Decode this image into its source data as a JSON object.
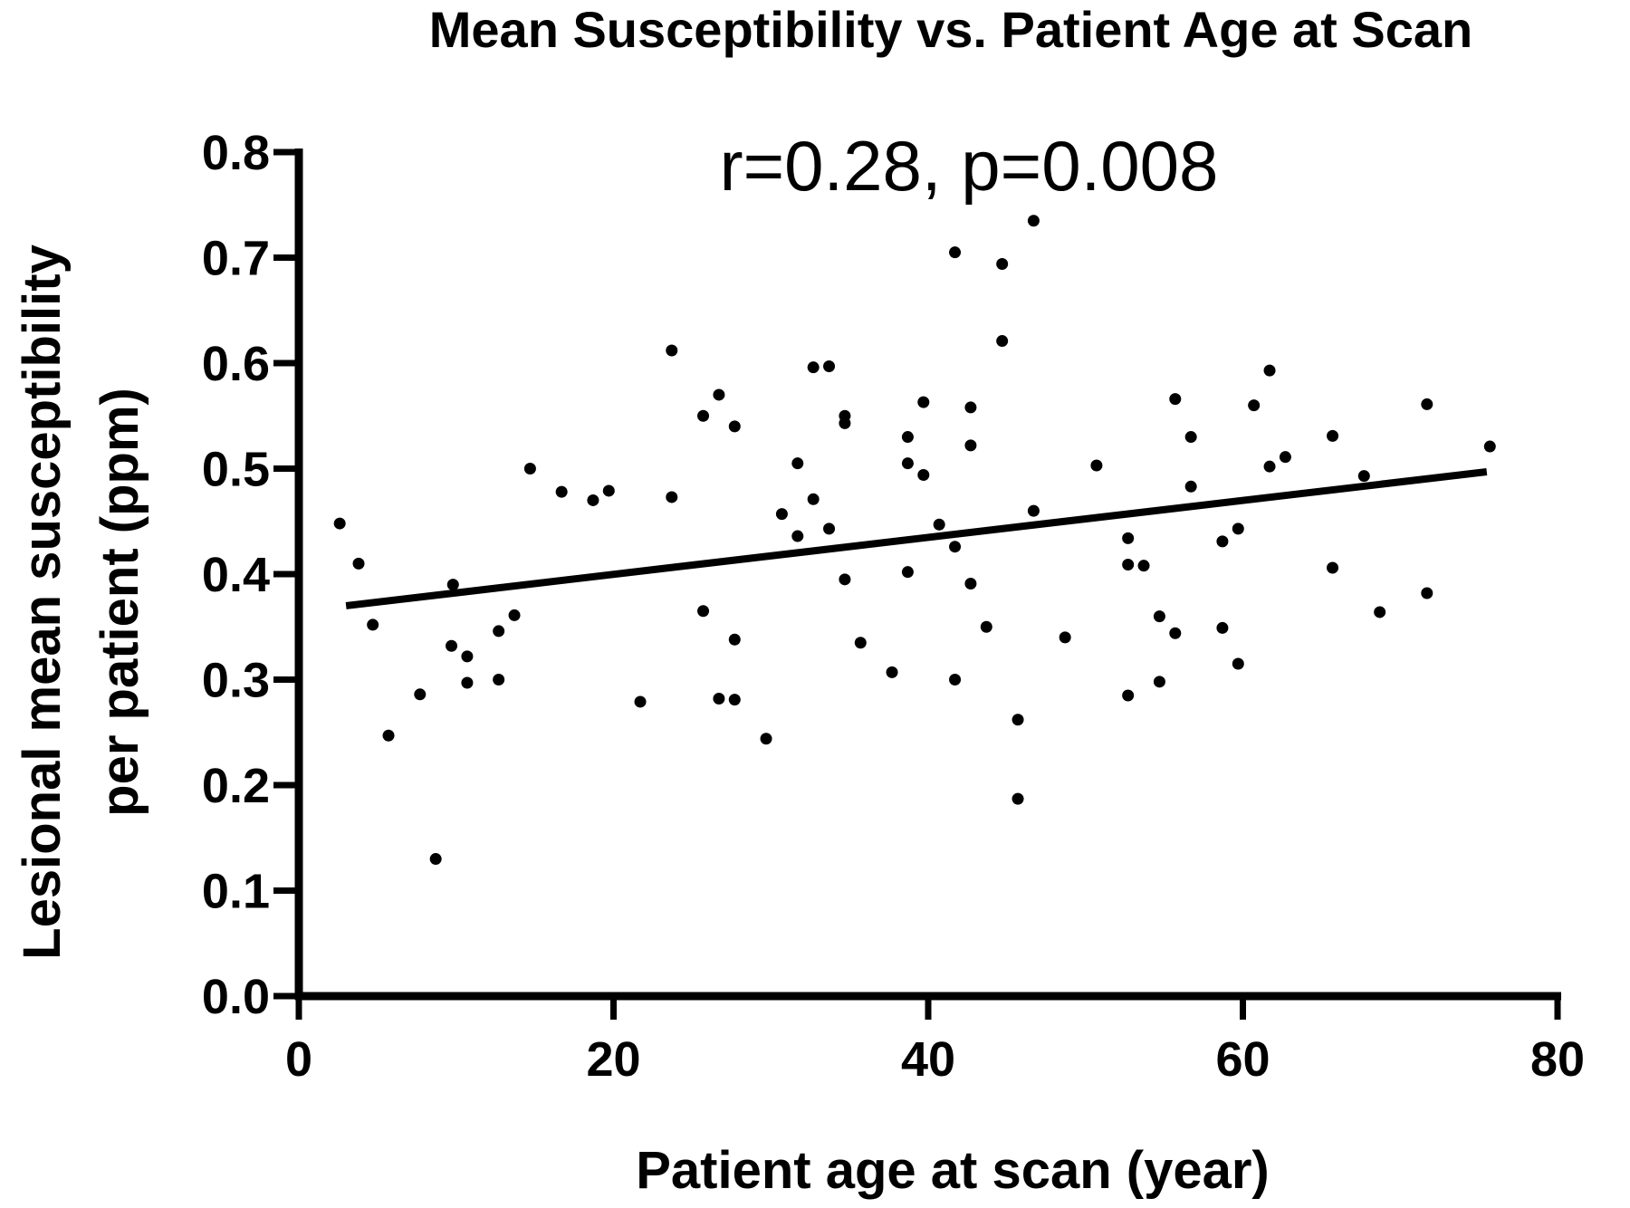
{
  "chart_data": {
    "type": "scatter",
    "title": "Mean Susceptibility vs. Patient Age at Scan",
    "annotation": "r=0.28, p=0.008",
    "xlabel": "Patient age at scan (year)",
    "ylabel_lines": [
      "Lesional mean susceptibility",
      "per patient (ppm)"
    ],
    "xlim": [
      0,
      80
    ],
    "ylim": [
      0,
      0.8
    ],
    "x_ticks": [
      0,
      20,
      40,
      60,
      80
    ],
    "x_tick_labels": [
      "0",
      "20",
      "40",
      "60",
      "80"
    ],
    "y_ticks": [
      0.0,
      0.1,
      0.2,
      0.3,
      0.4,
      0.5,
      0.6,
      0.7,
      0.8
    ],
    "y_tick_labels": [
      "0.0",
      "0.1",
      "0.2",
      "0.3",
      "0.4",
      "0.5",
      "0.6",
      "0.7",
      "0.8"
    ],
    "grid": false,
    "legend": "none",
    "marker_color": "#000000",
    "fit_line": {
      "x": [
        3,
        75.5
      ],
      "y": [
        0.37,
        0.497
      ]
    },
    "points": [
      [
        2.6,
        0.448
      ],
      [
        3.8,
        0.41
      ],
      [
        4.7,
        0.352
      ],
      [
        5.7,
        0.247
      ],
      [
        7.7,
        0.286
      ],
      [
        8.7,
        0.13
      ],
      [
        9.7,
        0.332
      ],
      [
        9.8,
        0.39
      ],
      [
        10.7,
        0.322
      ],
      [
        10.7,
        0.297
      ],
      [
        12.7,
        0.346
      ],
      [
        12.7,
        0.3
      ],
      [
        13.7,
        0.361
      ],
      [
        14.7,
        0.5
      ],
      [
        16.7,
        0.478
      ],
      [
        18.7,
        0.47
      ],
      [
        19.7,
        0.479
      ],
      [
        21.7,
        0.279
      ],
      [
        23.7,
        0.612
      ],
      [
        23.7,
        0.473
      ],
      [
        25.7,
        0.55
      ],
      [
        25.7,
        0.365
      ],
      [
        26.7,
        0.57
      ],
      [
        26.7,
        0.282
      ],
      [
        27.7,
        0.54
      ],
      [
        27.7,
        0.338
      ],
      [
        27.7,
        0.281
      ],
      [
        29.7,
        0.244
      ],
      [
        30.7,
        0.457
      ],
      [
        31.7,
        0.505
      ],
      [
        31.7,
        0.436
      ],
      [
        32.7,
        0.596
      ],
      [
        32.7,
        0.471
      ],
      [
        33.7,
        0.597
      ],
      [
        33.7,
        0.443
      ],
      [
        34.7,
        0.55
      ],
      [
        34.7,
        0.543
      ],
      [
        34.7,
        0.395
      ],
      [
        35.7,
        0.335
      ],
      [
        37.7,
        0.307
      ],
      [
        38.7,
        0.53
      ],
      [
        38.7,
        0.505
      ],
      [
        38.7,
        0.402
      ],
      [
        39.7,
        0.563
      ],
      [
        39.7,
        0.494
      ],
      [
        40.7,
        0.447
      ],
      [
        41.7,
        0.705
      ],
      [
        41.7,
        0.426
      ],
      [
        41.7,
        0.3
      ],
      [
        42.7,
        0.558
      ],
      [
        42.7,
        0.522
      ],
      [
        42.7,
        0.391
      ],
      [
        43.7,
        0.35
      ],
      [
        44.7,
        0.694
      ],
      [
        44.7,
        0.621
      ],
      [
        45.7,
        0.262
      ],
      [
        45.7,
        0.187
      ],
      [
        46.7,
        0.735
      ],
      [
        46.7,
        0.46
      ],
      [
        48.7,
        0.34
      ],
      [
        50.7,
        0.503
      ],
      [
        52.7,
        0.434
      ],
      [
        52.7,
        0.409
      ],
      [
        52.7,
        0.285
      ],
      [
        53.7,
        0.408
      ],
      [
        54.7,
        0.36
      ],
      [
        54.7,
        0.298
      ],
      [
        55.7,
        0.566
      ],
      [
        55.7,
        0.344
      ],
      [
        56.7,
        0.53
      ],
      [
        56.7,
        0.483
      ],
      [
        58.7,
        0.431
      ],
      [
        58.7,
        0.349
      ],
      [
        59.7,
        0.443
      ],
      [
        59.7,
        0.315
      ],
      [
        60.7,
        0.56
      ],
      [
        61.7,
        0.593
      ],
      [
        61.7,
        0.502
      ],
      [
        62.7,
        0.511
      ],
      [
        65.7,
        0.531
      ],
      [
        65.7,
        0.406
      ],
      [
        67.7,
        0.493
      ],
      [
        68.7,
        0.364
      ],
      [
        71.7,
        0.561
      ],
      [
        71.7,
        0.382
      ],
      [
        75.7,
        0.521
      ]
    ]
  }
}
